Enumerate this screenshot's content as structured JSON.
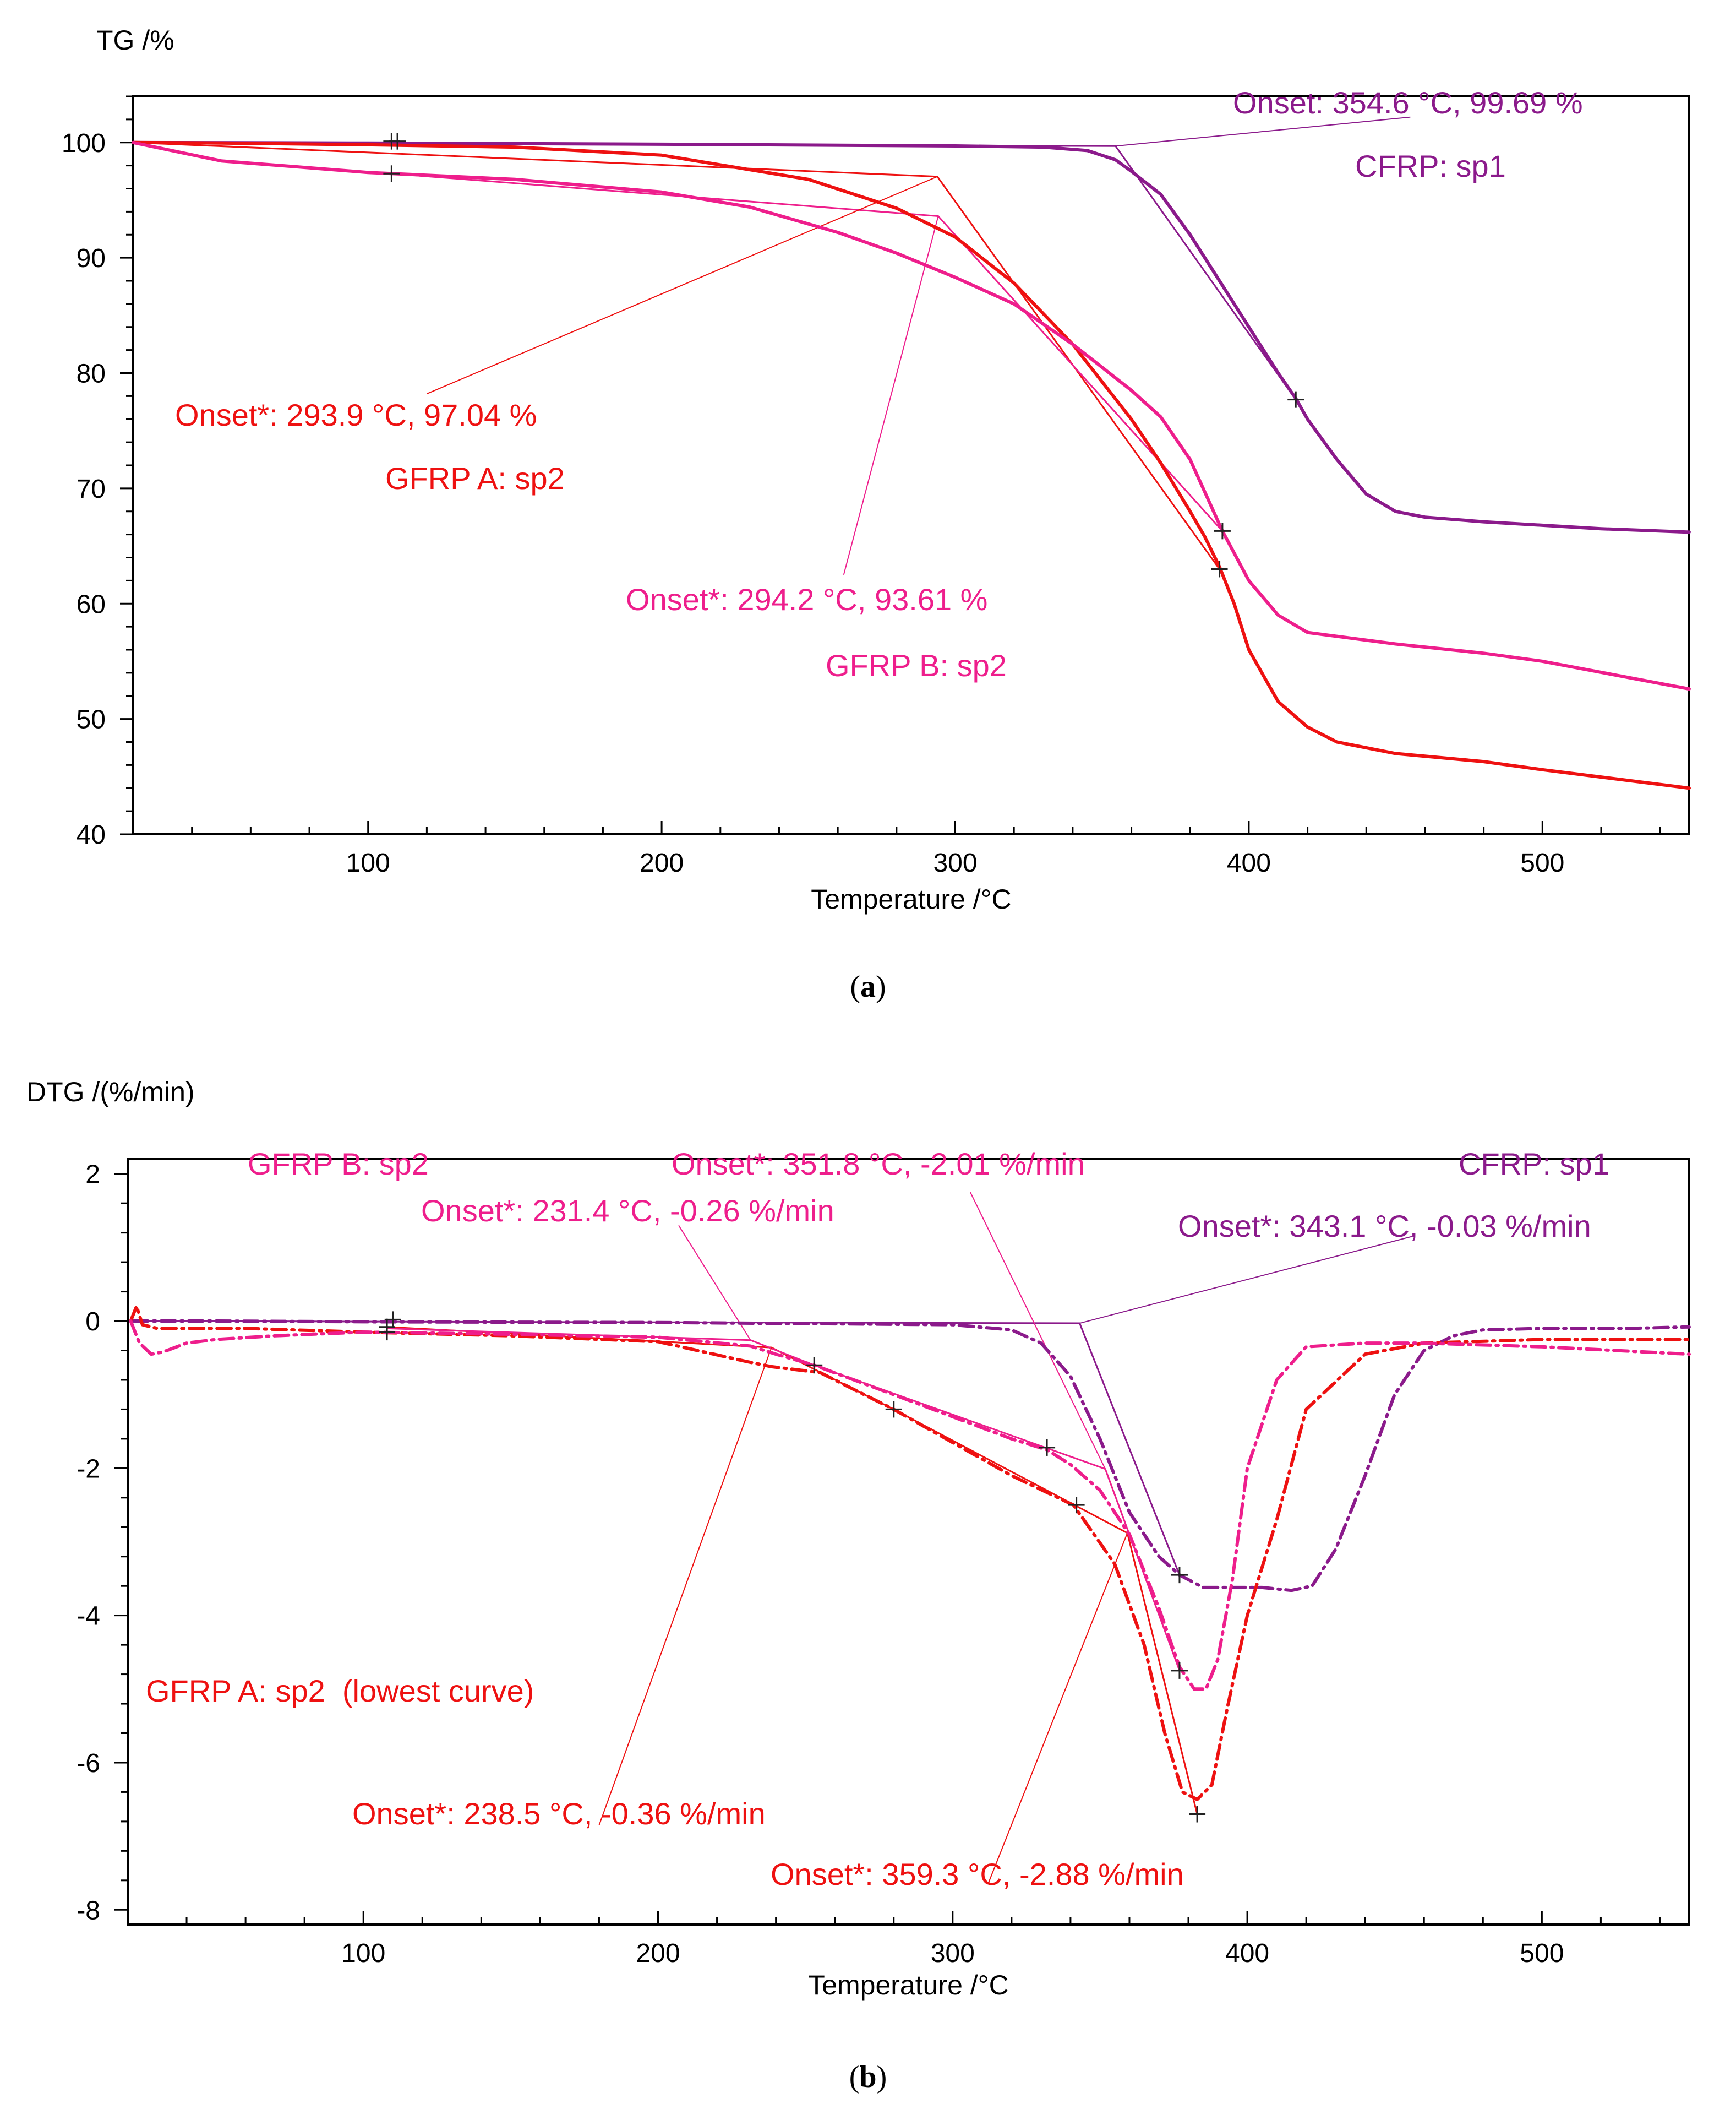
{
  "chart_data": [
    {
      "type": "line",
      "panel": "(a)",
      "panel_letter": "a",
      "ylabel": "TG /%",
      "xlabel": "Temperature /°C",
      "xlim": [
        20,
        550
      ],
      "ylim": [
        40,
        104
      ],
      "xticks": [
        100,
        200,
        300,
        400,
        500
      ],
      "yticks": [
        40,
        50,
        60,
        70,
        80,
        90,
        100
      ],
      "series": [
        {
          "name": "CFRP: sp1",
          "color": "#8B1A8B",
          "x": [
            20,
            100,
            200,
            300,
            330,
            345,
            354.6,
            360,
            370,
            380,
            390,
            400,
            410,
            416,
            420,
            430,
            440,
            450,
            460,
            480,
            500,
            520,
            550
          ],
          "y": [
            100,
            99.95,
            99.85,
            99.7,
            99.6,
            99.3,
            98.5,
            97.5,
            95.5,
            92,
            88,
            84,
            80,
            77.8,
            76,
            72.5,
            69.5,
            68,
            67.5,
            67.1,
            66.8,
            66.5,
            66.2
          ]
        },
        {
          "name": "GFRP A: sp2",
          "color": "#EE1111",
          "x": [
            20,
            50,
            100,
            150,
            200,
            250,
            280,
            300,
            320,
            340,
            360,
            370,
            380,
            385,
            390,
            395,
            400,
            410,
            420,
            430,
            450,
            480,
            500,
            550
          ],
          "y": [
            100,
            99.95,
            99.8,
            99.6,
            98.9,
            96.8,
            94.3,
            91.8,
            87.8,
            82.5,
            76,
            72.2,
            68,
            65.8,
            63.2,
            60,
            56,
            51.5,
            49.3,
            48,
            47,
            46.3,
            45.6,
            44
          ]
        },
        {
          "name": "GFRP B: sp2",
          "color": "#EE1E8C",
          "x": [
            20,
            50,
            100,
            150,
            200,
            230,
            260,
            280,
            300,
            320,
            340,
            360,
            370,
            380,
            391,
            400,
            410,
            420,
            450,
            480,
            500,
            550
          ],
          "y": [
            100,
            98.4,
            97.4,
            96.8,
            95.7,
            94.4,
            92.2,
            90.4,
            88.3,
            86,
            82.5,
            78.5,
            76.2,
            72.5,
            66.3,
            62,
            59,
            57.5,
            56.5,
            55.7,
            55,
            52.6
          ]
        }
      ],
      "tangent_lines": [
        {
          "series": "CFRP: sp1",
          "points": [
            [
              20,
              99.95
            ],
            [
              354.6,
              99.69
            ],
            [
              416,
              77.7
            ]
          ]
        },
        {
          "series": "GFRP A: sp2",
          "points": [
            [
              20,
              100
            ],
            [
              293.9,
              97.04
            ],
            [
              390,
              63
            ]
          ]
        },
        {
          "series": "GFRP B: sp2",
          "points": [
            [
              108,
              97.3
            ],
            [
              294.2,
              93.61
            ],
            [
              391,
              66.3
            ]
          ]
        }
      ],
      "markers": [
        {
          "series": "CFRP: sp1",
          "points": [
            [
              110,
              100.1
            ],
            [
              416,
              77.7
            ]
          ]
        },
        {
          "series": "GFRP A: sp2",
          "points": [
            [
              108,
              100.1
            ],
            [
              390,
              63
            ]
          ]
        },
        {
          "series": "GFRP B: sp2",
          "points": [
            [
              108,
              97.3
            ],
            [
              391,
              66.3
            ]
          ]
        }
      ],
      "annotations": [
        {
          "id": "cfrp-onset",
          "lines": [
            "Onset: 354.6 °C, 99.69 %",
            "CFRP: sp1"
          ],
          "color": "#8B1A8B",
          "leader_from": [
            354.6,
            99.69
          ],
          "leader_to": [
            455,
            102.2
          ]
        },
        {
          "id": "gfrpa-onset",
          "lines": [
            "Onset*: 293.9 °C, 97.04 %",
            "GFRP A: sp2"
          ],
          "color": "#EE1111",
          "leader_from": [
            293.9,
            97.04
          ],
          "leader_to": [
            120,
            78.2
          ]
        },
        {
          "id": "gfrpb-onset",
          "lines": [
            "Onset*: 294.2 °C, 93.61 %",
            "GFRP B: sp2"
          ],
          "color": "#EE1E8C",
          "leader_from": [
            294.2,
            93.61
          ],
          "leader_to": [
            262,
            62.5
          ]
        }
      ]
    },
    {
      "type": "line",
      "panel": "(b)",
      "panel_letter": "b",
      "ylabel": "DTG /(%/min)",
      "xlabel": "Temperature /°C",
      "xlim": [
        20,
        550
      ],
      "ylim": [
        -8.2,
        2.2
      ],
      "xticks": [
        100,
        200,
        300,
        400,
        500
      ],
      "yticks": [
        -8,
        -6,
        -4,
        -2,
        0,
        2
      ],
      "series": [
        {
          "name": "CFRP: sp1",
          "color": "#8B1A8B",
          "dash": "dashdot",
          "x": [
            22,
            50,
            100,
            200,
            300,
            320,
            330,
            340,
            350,
            360,
            370,
            377,
            385,
            395,
            405,
            415,
            422,
            430,
            440,
            450,
            460,
            470,
            480,
            500,
            530,
            550
          ],
          "y": [
            0,
            0,
            -0.01,
            -0.02,
            -0.05,
            -0.12,
            -0.3,
            -0.75,
            -1.6,
            -2.6,
            -3.2,
            -3.45,
            -3.62,
            -3.62,
            -3.62,
            -3.66,
            -3.6,
            -3.1,
            -2.1,
            -1.0,
            -0.4,
            -0.2,
            -0.12,
            -0.1,
            -0.1,
            -0.08
          ]
        },
        {
          "name": "GFRP A: sp2",
          "color": "#EE1111",
          "dash": "dashdot",
          "x": [
            21,
            23,
            25,
            30,
            40,
            60,
            100,
            150,
            200,
            230,
            238.5,
            255,
            280,
            300,
            320,
            341,
            355,
            365,
            372,
            378,
            383,
            388,
            393,
            400,
            410,
            420,
            440,
            460,
            500,
            550
          ],
          "y": [
            0,
            0.2,
            -0.05,
            -0.1,
            -0.1,
            -0.1,
            -0.15,
            -0.2,
            -0.28,
            -0.55,
            -0.62,
            -0.7,
            -1.2,
            -1.65,
            -2.1,
            -2.5,
            -3.3,
            -4.4,
            -5.6,
            -6.4,
            -6.5,
            -6.3,
            -5.3,
            -4.0,
            -2.7,
            -1.2,
            -0.45,
            -0.3,
            -0.25,
            -0.25
          ]
        },
        {
          "name": "GFRP B: sp2",
          "color": "#EE1E8C",
          "dash": "dashdot",
          "x": [
            21,
            24,
            28,
            32,
            40,
            50,
            70,
            100,
            150,
            200,
            231.4,
            240,
            253,
            280,
            300,
            320,
            332,
            340,
            350,
            360,
            370,
            377,
            382,
            386,
            390,
            395,
            400,
            410,
            420,
            440,
            460,
            500,
            550
          ],
          "y": [
            0,
            -0.3,
            -0.45,
            -0.42,
            -0.3,
            -0.25,
            -0.2,
            -0.15,
            -0.18,
            -0.22,
            -0.34,
            -0.45,
            -0.6,
            -1.0,
            -1.3,
            -1.6,
            -1.75,
            -1.95,
            -2.3,
            -2.9,
            -3.9,
            -4.7,
            -5.0,
            -5.0,
            -4.6,
            -3.5,
            -2.0,
            -0.8,
            -0.35,
            -0.3,
            -0.3,
            -0.35,
            -0.45
          ]
        }
      ],
      "tangent_lines": [
        {
          "series": "CFRP: sp1",
          "points": [
            [
              22,
              0
            ],
            [
              343.1,
              -0.03
            ],
            [
              377,
              -3.45
            ]
          ]
        },
        {
          "series": "GFRP A: sp2",
          "points": [
            [
              108,
              -0.08
            ],
            [
              238.5,
              -0.36
            ],
            [
              280,
              -1.2
            ]
          ]
        },
        {
          "series": "GFRP A: sp2",
          "points": [
            [
              280,
              -1.2
            ],
            [
              359.3,
              -2.88
            ],
            [
              383,
              -6.7
            ]
          ]
        },
        {
          "series": "GFRP B: sp2",
          "points": [
            [
              108,
              -0.1
            ],
            [
              231.4,
              -0.26
            ],
            [
              253,
              -0.6
            ]
          ]
        },
        {
          "series": "GFRP B: sp2",
          "points": [
            [
              253,
              -0.6
            ],
            [
              351.8,
              -2.01
            ],
            [
              377,
              -4.75
            ]
          ]
        }
      ],
      "markers": [
        {
          "series": "CFRP: sp1",
          "points": [
            [
              110,
              0.02
            ],
            [
              377,
              -3.45
            ]
          ]
        },
        {
          "series": "GFRP A: sp2",
          "points": [
            [
              108,
              -0.08
            ],
            [
              280,
              -1.2
            ],
            [
              342,
              -2.5
            ],
            [
              383,
              -6.7
            ]
          ]
        },
        {
          "series": "GFRP B: sp2",
          "points": [
            [
              108,
              -0.15
            ],
            [
              253,
              -0.6
            ],
            [
              332,
              -1.72
            ],
            [
              377,
              -4.75
            ]
          ]
        }
      ],
      "annotations": [
        {
          "id": "gfrpb-name",
          "lines": [
            "GFRP B: sp2"
          ],
          "color": "#EE1E8C"
        },
        {
          "id": "gfrpb-onset-2",
          "lines": [
            "Onset*: 351.8 °C, -2.01 %/min"
          ],
          "color": "#EE1E8C",
          "leader_from": [
            351.8,
            -2.01
          ],
          "leader_to": [
            306,
            1.75
          ]
        },
        {
          "id": "gfrpb-onset-1",
          "lines": [
            "Onset*: 231.4 °C, -0.26 %/min"
          ],
          "color": "#EE1E8C",
          "leader_from": [
            231.4,
            -0.26
          ],
          "leader_to": [
            207,
            1.3
          ]
        },
        {
          "id": "cfrp-name",
          "lines": [
            "CFRP: sp1"
          ],
          "color": "#8B1A8B"
        },
        {
          "id": "cfrp-onset",
          "lines": [
            "Onset*: 343.1 °C, -0.03 %/min"
          ],
          "color": "#8B1A8B",
          "leader_from": [
            343.1,
            -0.03
          ],
          "leader_to": [
            456,
            1.15
          ]
        },
        {
          "id": "gfrpa-name",
          "lines": [
            "GFRP A: sp2  (lowest curve)"
          ],
          "color": "#EE1111"
        },
        {
          "id": "gfrpa-onset-1",
          "lines": [
            "Onset*: 238.5 °C, -0.36 %/min"
          ],
          "color": "#EE1111",
          "leader_from": [
            238.5,
            -0.36
          ],
          "leader_to": [
            180,
            -6.85
          ]
        },
        {
          "id": "gfrpa-onset-2",
          "lines": [
            "Onset*: 359.3 °C, -2.88 %/min"
          ],
          "color": "#EE1111",
          "leader_from": [
            359.3,
            -2.88
          ],
          "leader_to": [
            312,
            -7.65
          ]
        }
      ]
    }
  ]
}
